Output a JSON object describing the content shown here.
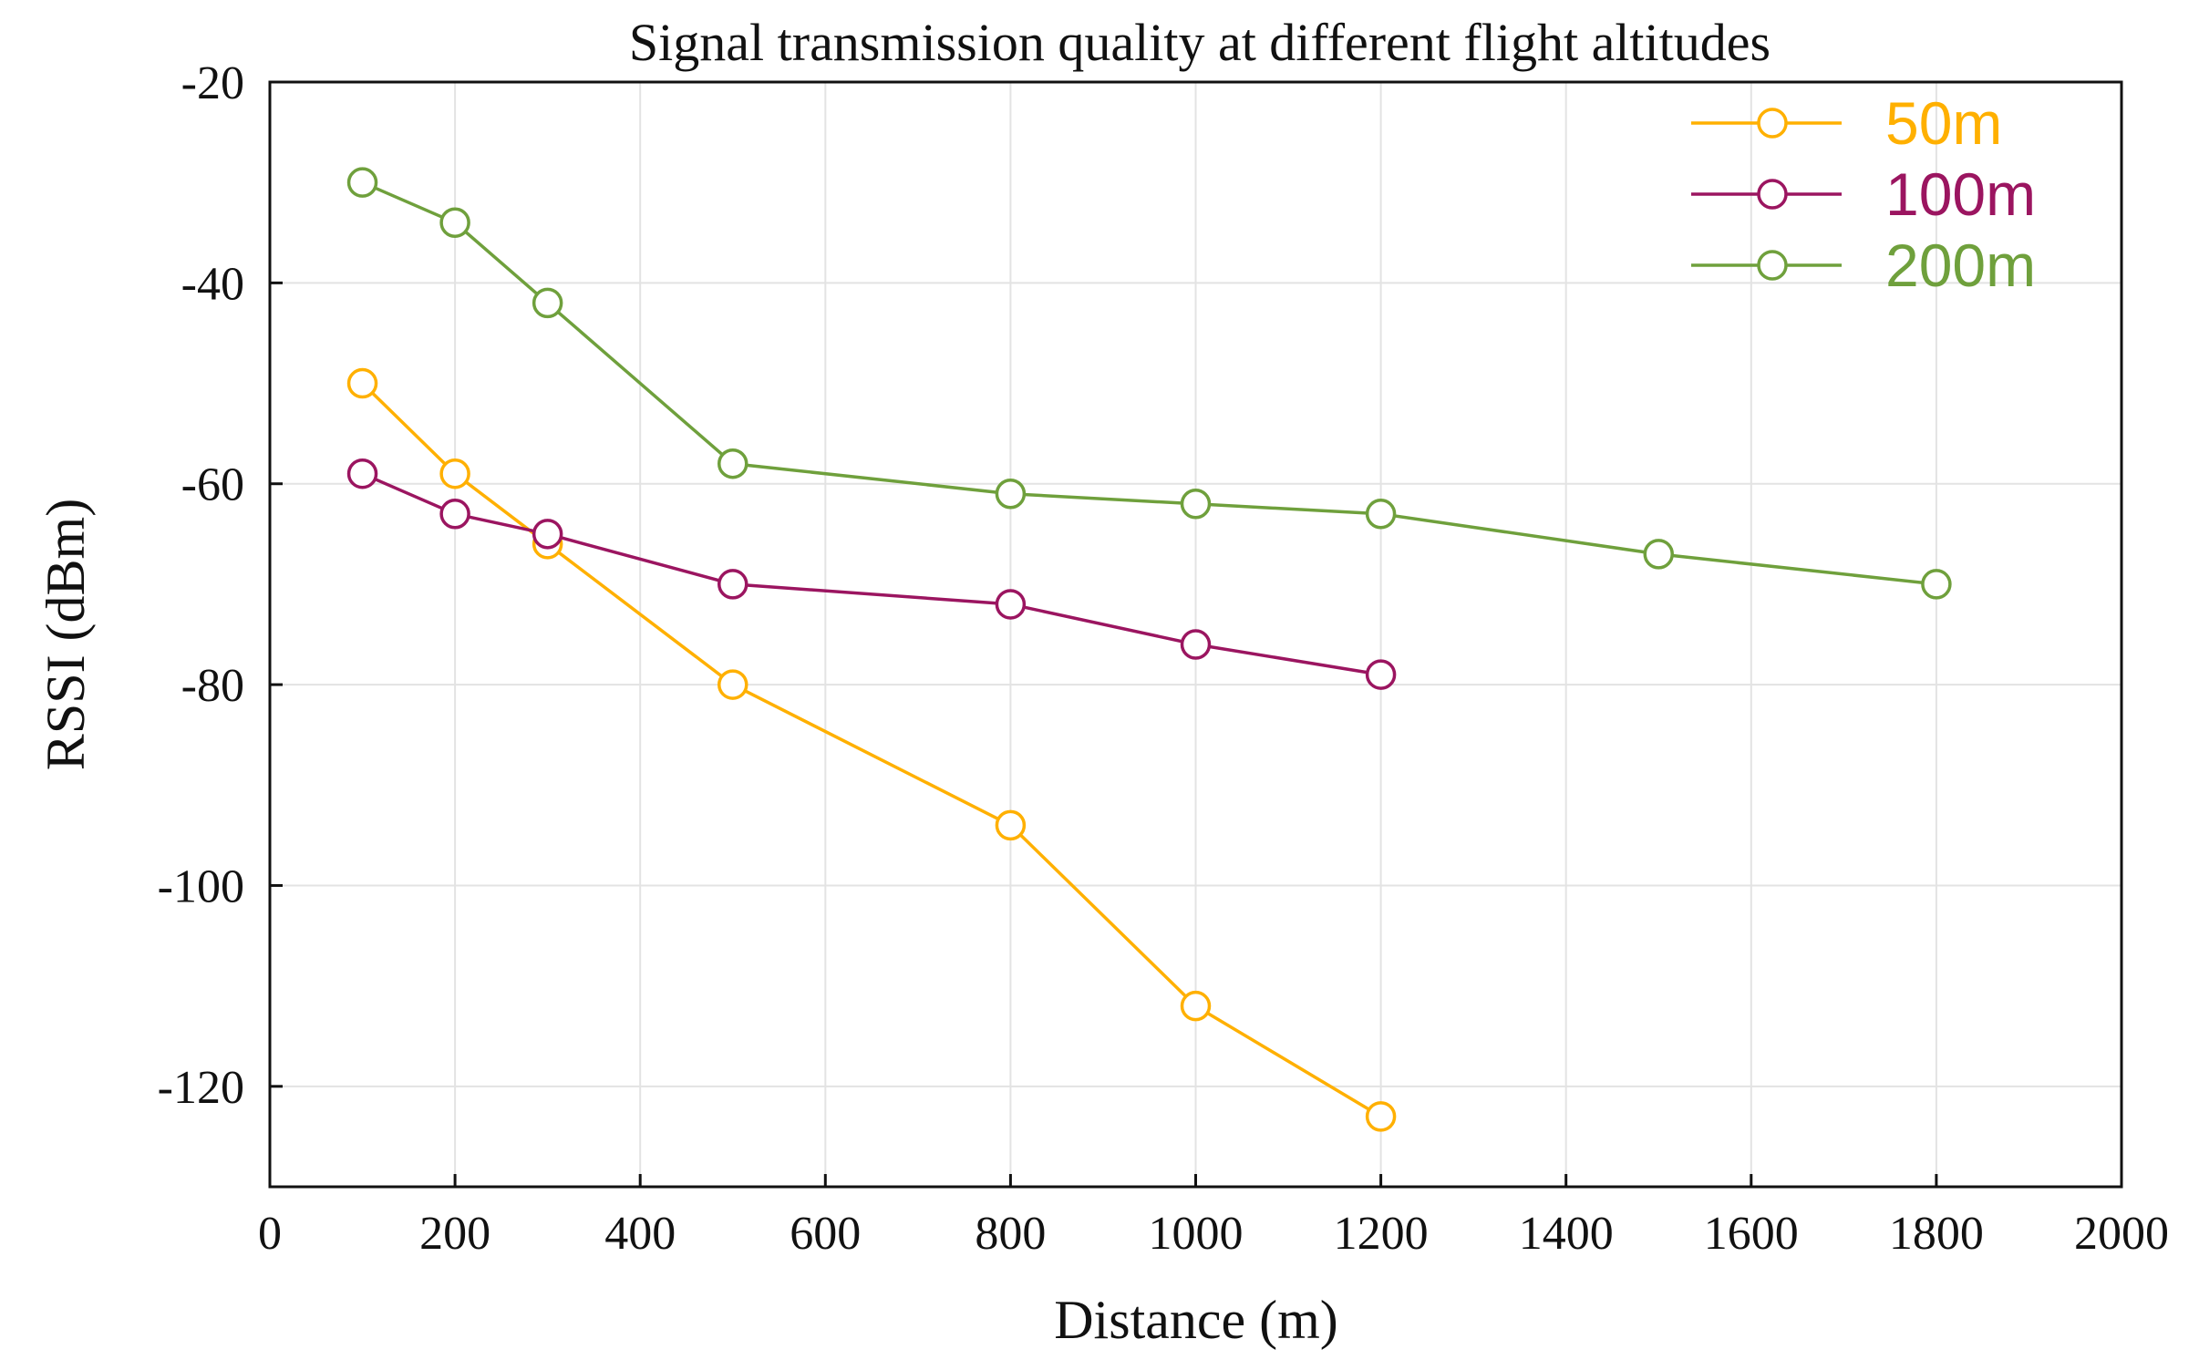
{
  "chart_data": {
    "type": "line",
    "title": "Signal transmission quality at different flight altitudes",
    "xlabel": "Distance (m)",
    "ylabel": "RSSI (dBm)",
    "xlim": [
      0,
      2000
    ],
    "ylim": [
      -130,
      -20
    ],
    "xticks": [
      0,
      200,
      400,
      600,
      800,
      1000,
      1200,
      1400,
      1600,
      1800,
      2000
    ],
    "yticks": [
      -20,
      -40,
      -60,
      -80,
      -100,
      -120
    ],
    "grid": true,
    "legend_position": "top-right",
    "series": [
      {
        "name": "50m",
        "color": "#FFB000",
        "x": [
          100,
          200,
          300,
          500,
          800,
          1000,
          1200
        ],
        "y": [
          -50,
          -59,
          -66,
          -80,
          -94,
          -112,
          -123
        ]
      },
      {
        "name": "100m",
        "color": "#9B1560",
        "x": [
          100,
          200,
          300,
          500,
          800,
          1000,
          1200
        ],
        "y": [
          -59,
          -63,
          -65,
          -70,
          -72,
          -76,
          -79
        ]
      },
      {
        "name": "200m",
        "color": "#6FA03C",
        "x": [
          100,
          200,
          300,
          500,
          800,
          1000,
          1200,
          1500,
          1800
        ],
        "y": [
          -30,
          -34,
          -42,
          -58,
          -61,
          -62,
          -63,
          -67,
          -70
        ]
      }
    ]
  }
}
